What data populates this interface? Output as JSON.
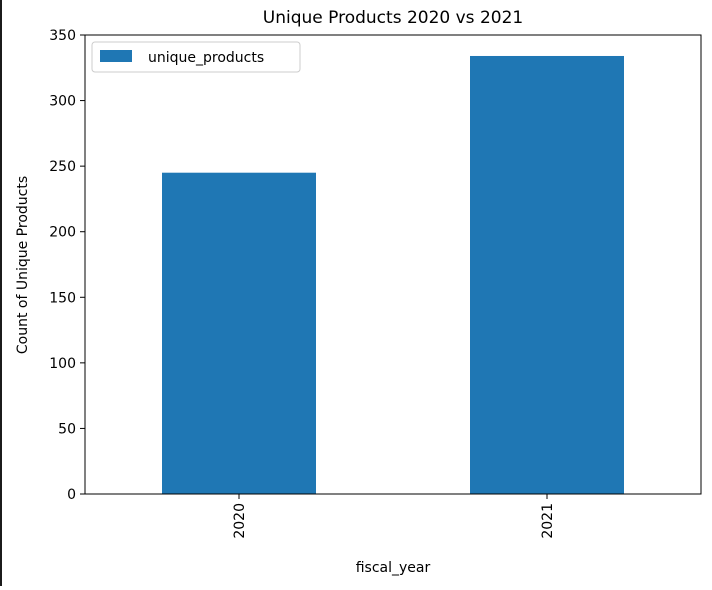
{
  "chart_data": {
    "type": "bar",
    "title": "Unique Products 2020 vs 2021",
    "xlabel": "fiscal_year",
    "ylabel": "Count of Unique Products",
    "categories": [
      "2020",
      "2021"
    ],
    "series": [
      {
        "name": "unique_products",
        "values": [
          245,
          334
        ]
      }
    ],
    "ylim": [
      0,
      350
    ],
    "yticks": [
      "0",
      "50",
      "100",
      "150",
      "200",
      "250",
      "300",
      "350"
    ],
    "grid": false,
    "legend": "top-left",
    "colors": {
      "bar": "#1f77b4",
      "axis": "#000000"
    }
  }
}
